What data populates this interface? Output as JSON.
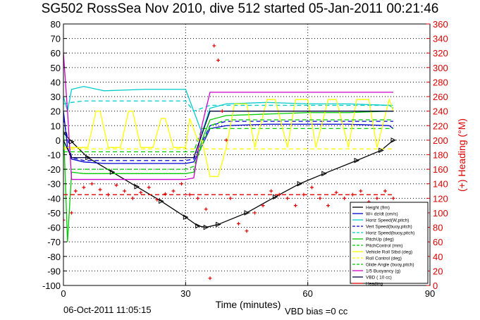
{
  "title": "SG502 RossSea Nov 2010, dive 512 started 05-Jan-2011 00:21:46",
  "footer": {
    "timestamp": "06-Oct-2011 11:05:15",
    "vbd_bias": "VBD bias =0 cc"
  },
  "chart_data": {
    "type": "line",
    "xlabel": "Time (minutes)",
    "ylabel_right": "(+) Heading (°M)",
    "xlim": [
      0,
      90
    ],
    "ylim": [
      -100,
      80
    ],
    "ylim_right": [
      0,
      360
    ],
    "xticks": [
      0,
      30,
      60,
      90
    ],
    "yticks": [
      -100,
      -90,
      -80,
      -70,
      -60,
      -50,
      -40,
      -30,
      -20,
      -10,
      0,
      10,
      20,
      30,
      40,
      50,
      60,
      70,
      80
    ],
    "yticks_right": [
      0,
      20,
      40,
      60,
      80,
      100,
      120,
      140,
      160,
      180,
      200,
      220,
      240,
      260,
      280,
      300,
      320,
      340,
      360
    ],
    "grid": true,
    "legend_position": "bottom-right",
    "series": [
      {
        "name": "Height (9m)",
        "color": "#000000",
        "style": "solid",
        "axis": "left",
        "x": [
          0,
          2,
          6,
          12,
          18,
          24,
          30,
          33,
          35,
          38,
          45,
          52,
          58,
          64,
          72,
          78,
          81
        ],
        "y": [
          5,
          -1,
          -12,
          -22,
          -32,
          -42,
          -53,
          -59,
          -60,
          -58,
          -50,
          -39,
          -30,
          -23,
          -14,
          -7,
          0
        ]
      },
      {
        "name": "W= dz/dt (cm/s)",
        "color": "#0000cc",
        "style": "solid",
        "axis": "left",
        "x": [
          0,
          1,
          2,
          5,
          10,
          20,
          30,
          32,
          34,
          36,
          40,
          50,
          60,
          70,
          80,
          81
        ],
        "y": [
          20,
          -5,
          -13,
          -15,
          -16,
          -16,
          -16,
          -15,
          -4,
          8,
          10,
          11,
          11,
          11,
          10,
          8
        ]
      },
      {
        "name": "Horiz Speed(W,pitch)",
        "color": "#00cccc",
        "style": "solid",
        "axis": "left",
        "x": [
          0,
          1,
          2,
          5,
          10,
          20,
          30,
          32,
          34,
          36,
          40,
          50,
          60,
          70,
          80,
          81
        ],
        "y": [
          30,
          20,
          35,
          37,
          34,
          35,
          35,
          20,
          5,
          22,
          25,
          26,
          25,
          25,
          24,
          22
        ]
      },
      {
        "name": "Vert Speed(buoy,pitch)",
        "color": "#0000cc",
        "style": "dashed",
        "axis": "left",
        "x": [
          0,
          2,
          5,
          30,
          32,
          36,
          40,
          81
        ],
        "y": [
          15,
          -12,
          -14,
          -14,
          -13,
          10,
          13,
          13
        ]
      },
      {
        "name": "Horiz Speed(buoy,pitch)",
        "color": "#00cccc",
        "style": "dashed",
        "axis": "left",
        "x": [
          0,
          2,
          5,
          30,
          32,
          36,
          40,
          81
        ],
        "y": [
          25,
          26,
          27,
          27,
          20,
          24,
          24,
          24
        ]
      },
      {
        "name": "PitchUp (deg)",
        "color": "#00cc00",
        "style": "solid",
        "axis": "left",
        "x": [
          0,
          1,
          2,
          5,
          10,
          20,
          30,
          32,
          34,
          36,
          40,
          50,
          60,
          70,
          80,
          81
        ],
        "y": [
          10,
          -70,
          -22,
          -23,
          -23,
          -23,
          -23,
          -22,
          0,
          14,
          17,
          18,
          19,
          19,
          20,
          20
        ]
      },
      {
        "name": "PitchControl (mm)",
        "color": "#00cc00",
        "style": "dashed",
        "axis": "left",
        "x": [
          0,
          2,
          30,
          32,
          34,
          81
        ],
        "y": [
          -8,
          -8,
          -8,
          -8,
          8,
          8
        ]
      },
      {
        "name": "Vehicle Roll Stbd (deg)",
        "color": "#ffff00",
        "style": "solid",
        "axis": "left",
        "x": [
          0,
          3,
          6,
          8,
          9,
          11,
          14,
          16,
          17,
          19,
          22,
          24,
          25,
          27,
          30,
          31,
          33,
          34,
          36,
          38,
          40,
          42,
          45,
          47,
          50,
          52,
          55,
          57,
          60,
          62,
          65,
          67,
          70,
          72,
          75,
          77,
          80,
          81
        ],
        "y": [
          -5,
          -5,
          -5,
          20,
          20,
          -5,
          -5,
          20,
          20,
          -5,
          -5,
          15,
          15,
          -5,
          -5,
          15,
          0,
          0,
          -25,
          -25,
          -5,
          25,
          25,
          -5,
          28,
          28,
          -5,
          28,
          28,
          -5,
          28,
          28,
          -5,
          28,
          28,
          -5,
          28,
          20
        ]
      },
      {
        "name": "Roll Control (deg)",
        "color": "#ffff00",
        "style": "dashed",
        "axis": "left",
        "x": [
          0,
          81
        ],
        "y": [
          -6,
          -6
        ]
      },
      {
        "name": "Glide Angle (buoy,pitch)",
        "color": "#00cc00",
        "style": "dashed",
        "axis": "left",
        "x": [
          0,
          2,
          30,
          32,
          36,
          40,
          81
        ],
        "y": [
          -20,
          -20,
          -20,
          -18,
          10,
          14,
          14
        ]
      },
      {
        "name": "1/5 Buoyancy (g)",
        "color": "#cc00cc",
        "style": "solid",
        "axis": "left",
        "x": [
          0,
          1,
          2,
          30,
          32,
          34,
          36,
          40,
          81
        ],
        "y": [
          60,
          20,
          -27,
          -27,
          -26,
          10,
          33,
          33,
          33
        ]
      },
      {
        "name": "VBD ( 10 cc)",
        "color": "#000044",
        "style": "solid",
        "axis": "left",
        "x": [
          0,
          2,
          30,
          32,
          36,
          40,
          81
        ],
        "y": [
          0,
          -12,
          -12,
          -12,
          20,
          20,
          20
        ]
      },
      {
        "name": "Heading",
        "color": "#dd0000",
        "style": "points",
        "axis": "right",
        "x": [
          0,
          2,
          3,
          5,
          7,
          9,
          11,
          13,
          15,
          17,
          19,
          21,
          23,
          25,
          27,
          29,
          31,
          33,
          35,
          36,
          37,
          38,
          39,
          40,
          41,
          43,
          45,
          47,
          49,
          51,
          53,
          55,
          57,
          59,
          61,
          63,
          65,
          67,
          69,
          71,
          73,
          75,
          77,
          79,
          81
        ],
        "y": [
          90,
          100,
          130,
          135,
          140,
          132,
          125,
          138,
          130,
          120,
          128,
          135,
          118,
          126,
          130,
          140,
          125,
          120,
          105,
          10,
          330,
          310,
          240,
          200,
          120,
          85,
          75,
          100,
          110,
          130,
          125,
          120,
          110,
          125,
          135,
          120,
          110,
          128,
          120,
          125,
          130,
          115,
          120,
          130,
          120
        ]
      },
      {
        "name": "",
        "color": "#dd0000",
        "style": "dashed",
        "axis": "right",
        "x": [
          0,
          81
        ],
        "y": [
          125,
          125
        ]
      }
    ]
  }
}
